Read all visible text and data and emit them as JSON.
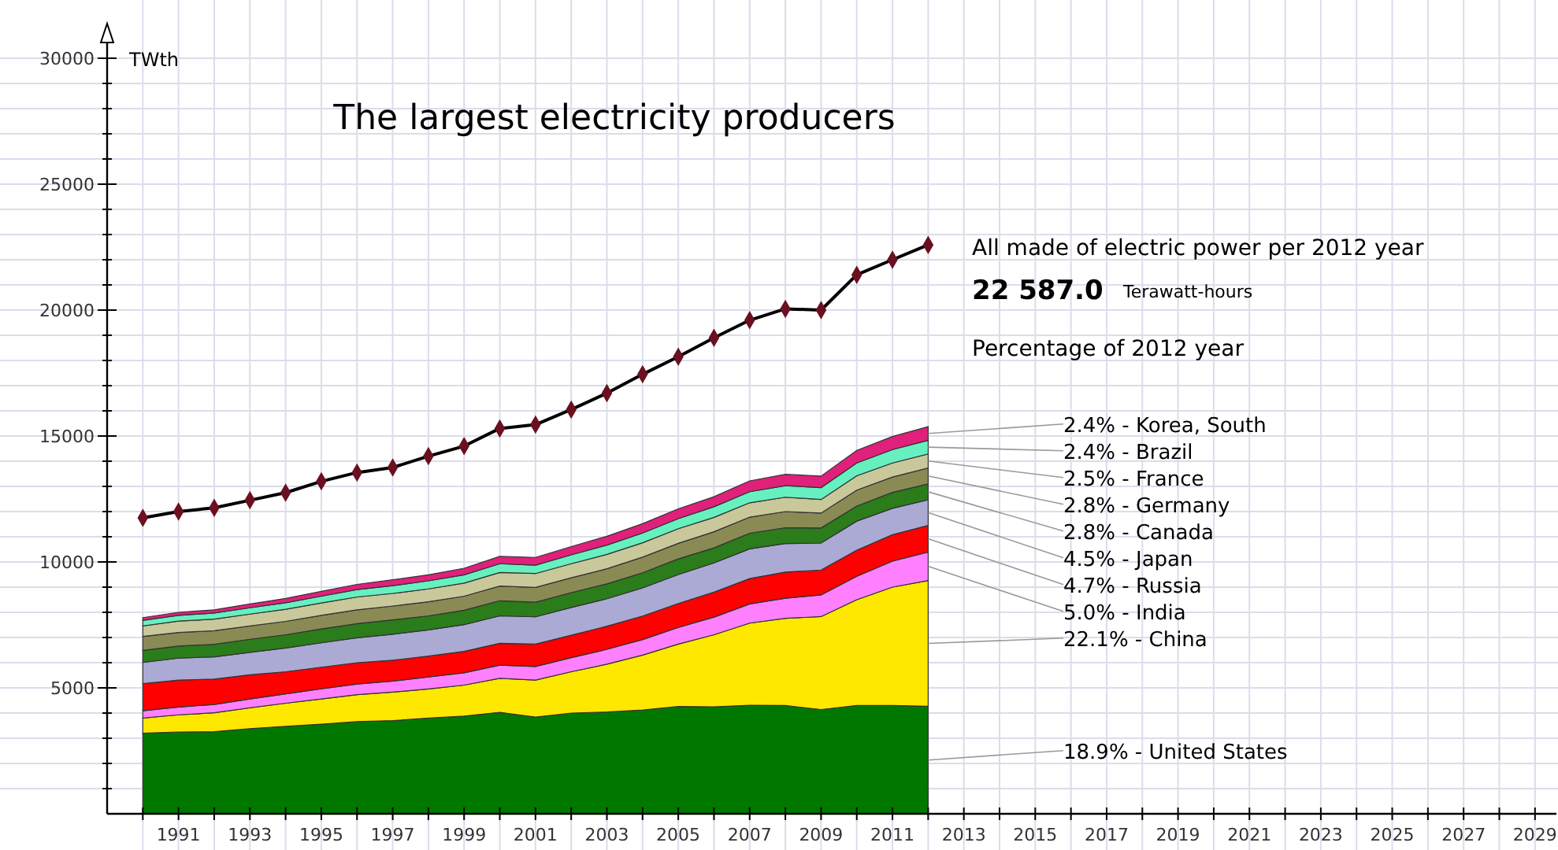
{
  "chart_data": {
    "type": "area",
    "title": "The largest electricity producers",
    "ylabel": "TWth",
    "stacked": true,
    "grid": true,
    "x": [
      1990,
      1991,
      1992,
      1993,
      1994,
      1995,
      1996,
      1997,
      1998,
      1999,
      2000,
      2001,
      2002,
      2003,
      2004,
      2005,
      2006,
      2007,
      2008,
      2009,
      2010,
      2011,
      2012
    ],
    "xlim": [
      1989,
      2029.6
    ],
    "ylim": [
      0,
      31000
    ],
    "xticks": [
      {
        "value": 1990,
        "label": null
      },
      1991,
      {
        "value": 1992,
        "label": null
      },
      1993,
      {
        "value": 1994,
        "label": null
      },
      1995,
      {
        "value": 1996,
        "label": null
      },
      1997,
      {
        "value": 1998,
        "label": null
      },
      1999,
      {
        "value": 2000,
        "label": null
      },
      2001,
      {
        "value": 2002,
        "label": null
      },
      2003,
      {
        "value": 2004,
        "label": null
      },
      2005,
      {
        "value": 2006,
        "label": null
      },
      2007,
      {
        "value": 2008,
        "label": null
      },
      2009,
      {
        "value": 2010,
        "label": null
      },
      2011,
      {
        "value": 2012,
        "label": null
      },
      2013,
      {
        "value": 2014,
        "label": null
      },
      2015,
      {
        "value": 2016,
        "label": null
      },
      2017,
      {
        "value": 2018,
        "label": null
      },
      2019,
      {
        "value": 2020,
        "label": null
      },
      2021,
      {
        "value": 2022,
        "label": null
      },
      2023,
      {
        "value": 2024,
        "label": null
      },
      2025,
      {
        "value": 2026,
        "label": null
      },
      2027,
      {
        "value": 2028,
        "label": null
      },
      2029
    ],
    "yticks": [
      {
        "value": 1000,
        "label": null
      },
      {
        "value": 2000,
        "label": null
      },
      {
        "value": 3000,
        "label": null
      },
      {
        "value": 4000,
        "label": null
      },
      5000,
      {
        "value": 6000,
        "label": null
      },
      {
        "value": 7000,
        "label": null
      },
      {
        "value": 8000,
        "label": null
      },
      {
        "value": 9000,
        "label": null
      },
      10000,
      {
        "value": 11000,
        "label": null
      },
      {
        "value": 12000,
        "label": null
      },
      {
        "value": 13000,
        "label": null
      },
      {
        "value": 14000,
        "label": null
      },
      15000,
      {
        "value": 16000,
        "label": null
      },
      {
        "value": 17000,
        "label": null
      },
      {
        "value": 18000,
        "label": null
      },
      {
        "value": 19000,
        "label": null
      },
      20000,
      {
        "value": 21000,
        "label": null
      },
      {
        "value": 22000,
        "label": null
      },
      {
        "value": 23000,
        "label": null
      },
      {
        "value": 24000,
        "label": null
      },
      25000,
      {
        "value": 26000,
        "label": null
      },
      {
        "value": 27000,
        "label": null
      },
      {
        "value": 28000,
        "label": null
      },
      {
        "value": 29000,
        "label": null
      },
      30000
    ],
    "series": [
      {
        "name": "18.9% - United States",
        "color": "#007800",
        "values": [
          3200,
          3250,
          3260,
          3380,
          3470,
          3560,
          3660,
          3700,
          3800,
          3880,
          4030,
          3840,
          4000,
          4040,
          4120,
          4260,
          4250,
          4310,
          4300,
          4140,
          4300,
          4300,
          4270
        ]
      },
      {
        "name": "22.1% - China",
        "color": "#ffe800",
        "values": [
          600,
          680,
          750,
          830,
          920,
          1000,
          1070,
          1130,
          1160,
          1230,
          1350,
          1470,
          1640,
          1900,
          2180,
          2480,
          2860,
          3260,
          3460,
          3690,
          4200,
          4700,
          4990
        ]
      },
      {
        "name": "5.0% - India",
        "color": "#ff80ff",
        "values": [
          290,
          310,
          330,
          350,
          370,
          400,
          420,
          440,
          470,
          490,
          520,
          540,
          560,
          590,
          620,
          660,
          700,
          760,
          800,
          860,
          930,
          1030,
          1130
        ]
      },
      {
        "name": "4.7% - Russia",
        "color": "#ff0000",
        "values": [
          1080,
          1070,
          1010,
          960,
          880,
          860,
          850,
          830,
          830,
          850,
          870,
          890,
          890,
          920,
          930,
          950,
          990,
          1010,
          1040,
          990,
          1040,
          1050,
          1060
        ]
      },
      {
        "name": "4.5% - Japan",
        "color": "#aaaad5",
        "values": [
          840,
          870,
          880,
          890,
          940,
          970,
          990,
          1030,
          1040,
          1060,
          1090,
          1080,
          1100,
          1090,
          1120,
          1150,
          1160,
          1180,
          1130,
          1070,
          1150,
          1050,
          1020
        ]
      },
      {
        "name": "2.8% - Canada",
        "color": "#2a7d1a",
        "values": [
          480,
          480,
          500,
          520,
          530,
          550,
          560,
          570,
          560,
          570,
          600,
          580,
          590,
          590,
          600,
          620,
          600,
          620,
          630,
          600,
          600,
          630,
          630
        ]
      },
      {
        "name": "2.8% - Germany",
        "color": "#8a8a55",
        "values": [
          550,
          540,
          540,
          530,
          530,
          540,
          550,
          550,
          560,
          560,
          580,
          590,
          590,
          600,
          620,
          620,
          640,
          640,
          640,
          590,
          630,
          610,
          630
        ]
      },
      {
        "name": "2.5% - France",
        "color": "#c8c89a",
        "values": [
          420,
          450,
          460,
          470,
          480,
          490,
          510,
          500,
          510,
          520,
          540,
          550,
          560,
          570,
          570,
          580,
          570,
          570,
          570,
          540,
          570,
          560,
          560
        ]
      },
      {
        "name": "2.4% - Brazil",
        "color": "#66f0c0",
        "values": [
          220,
          230,
          240,
          250,
          260,
          270,
          290,
          310,
          320,
          330,
          350,
          330,
          350,
          370,
          390,
          400,
          420,
          440,
          460,
          470,
          510,
          530,
          540
        ]
      },
      {
        "name": "2.4% - Korea, South",
        "color": "#e0207a",
        "values": [
          110,
          120,
          130,
          150,
          170,
          190,
          210,
          230,
          240,
          260,
          290,
          310,
          330,
          350,
          370,
          390,
          400,
          430,
          450,
          460,
          500,
          520,
          540
        ]
      },
      {
        "type": "line",
        "marker": "diamond",
        "color": "#000000",
        "values": [
          11750,
          12000,
          12150,
          12450,
          12750,
          13200,
          13550,
          13750,
          14200,
          14600,
          15300,
          15450,
          16050,
          16700,
          17450,
          18150,
          18900,
          19600,
          20050,
          20000,
          21400,
          22000,
          22587
        ]
      }
    ],
    "annotations": [
      "All made of electric power per 2012 year",
      "22 587.0",
      "Terawatt-hours",
      "Percentage of 2012 year"
    ]
  }
}
